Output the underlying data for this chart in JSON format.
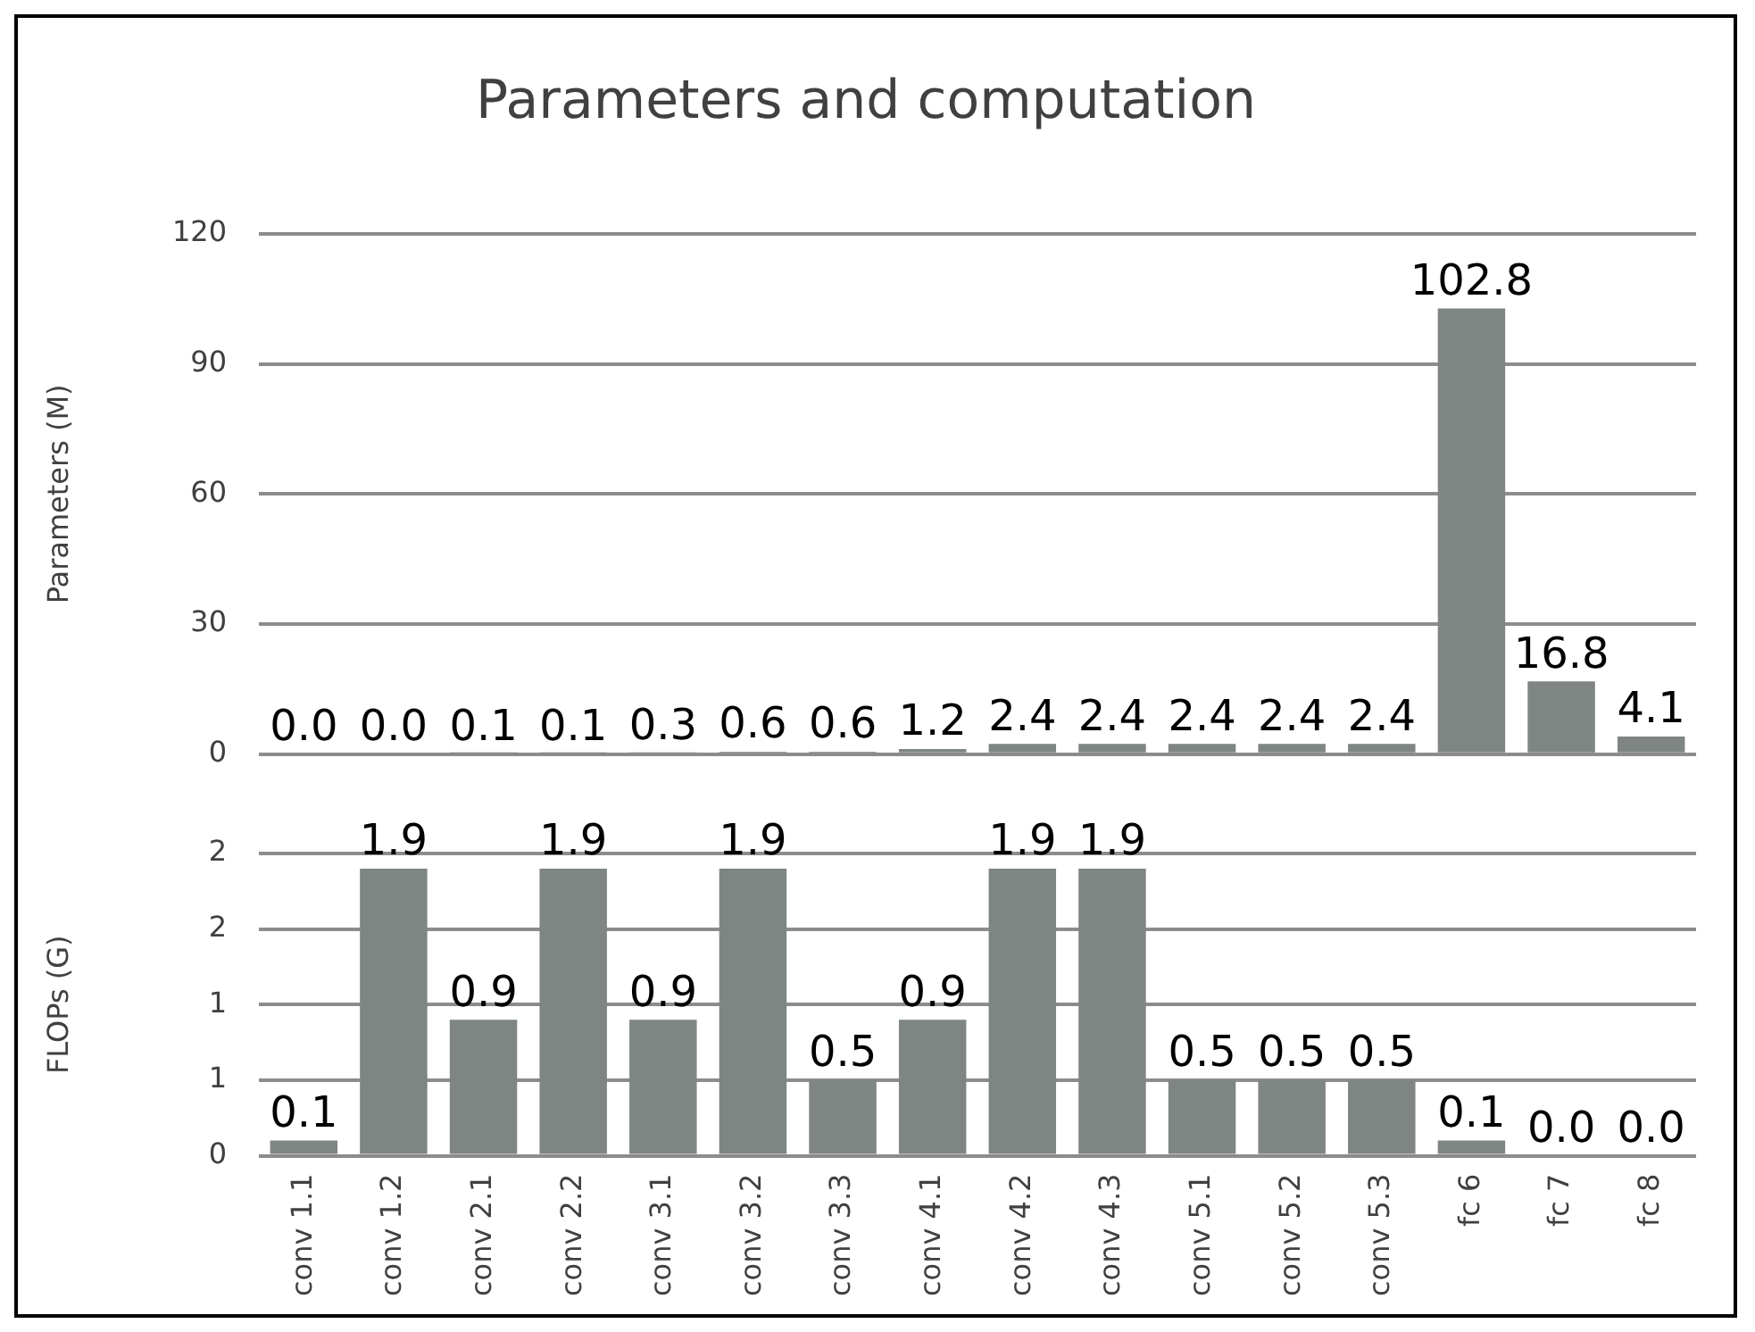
{
  "chart_data": [
    {
      "type": "bar",
      "title": "Parameters and computation",
      "ylabel": "Parameters (M)",
      "categories": [
        null,
        null,
        null,
        null,
        null,
        null,
        null,
        null,
        null,
        null,
        null,
        null,
        null,
        null,
        null,
        null
      ],
      "values": [
        0.0,
        0.0,
        0.1,
        0.1,
        0.3,
        0.6,
        0.6,
        1.2,
        2.4,
        2.4,
        2.4,
        2.4,
        2.4,
        102.8,
        16.8,
        4.1
      ],
      "value_labels": [
        "0.0",
        "0.0",
        "0.1",
        "0.1",
        "0.3",
        "0.6",
        "0.6",
        "1.2",
        "2.4",
        "2.4",
        "2.4",
        "2.4",
        "2.4",
        "102.8",
        "16.8",
        "4.1"
      ],
      "color": "#7f8583",
      "ylim": [
        0,
        120
      ],
      "yticks": [
        0,
        30,
        60,
        90,
        120
      ],
      "grid": "y",
      "tick_labels": "y"
    },
    {
      "type": "bar",
      "ylabel": "FLOPs (G)",
      "categories": [
        "conv 1.1",
        "conv 1.2",
        "conv 2.1",
        "conv 2.2",
        "conv 3.1",
        "conv 3.2",
        "conv 3.3",
        "conv 4.1",
        "conv 4.2",
        "conv 4.3",
        "conv 5.1",
        "conv 5.2",
        "conv 5.3",
        "fc 6",
        "fc 7",
        "fc 8"
      ],
      "values": [
        0.1,
        1.9,
        0.9,
        1.9,
        0.9,
        1.9,
        0.5,
        0.9,
        1.9,
        1.9,
        0.5,
        0.5,
        0.5,
        0.1,
        0.0,
        0.0
      ],
      "value_labels": [
        "0.1",
        "1.9",
        "0.9",
        "1.9",
        "0.9",
        "1.9",
        "0.5",
        "0.9",
        "1.9",
        "1.9",
        "0.5",
        "0.5",
        "0.5",
        "0.1",
        "0.0",
        "0.0"
      ],
      "color": "#7f8583",
      "ylim": [
        0,
        2
      ],
      "yticks": [
        0,
        {
          "value": 0.5,
          "label": "1"
        },
        {
          "value": 1,
          "label": "1"
        },
        {
          "value": 1.5,
          "label": "2"
        },
        2
      ],
      "grid": "y"
    }
  ]
}
